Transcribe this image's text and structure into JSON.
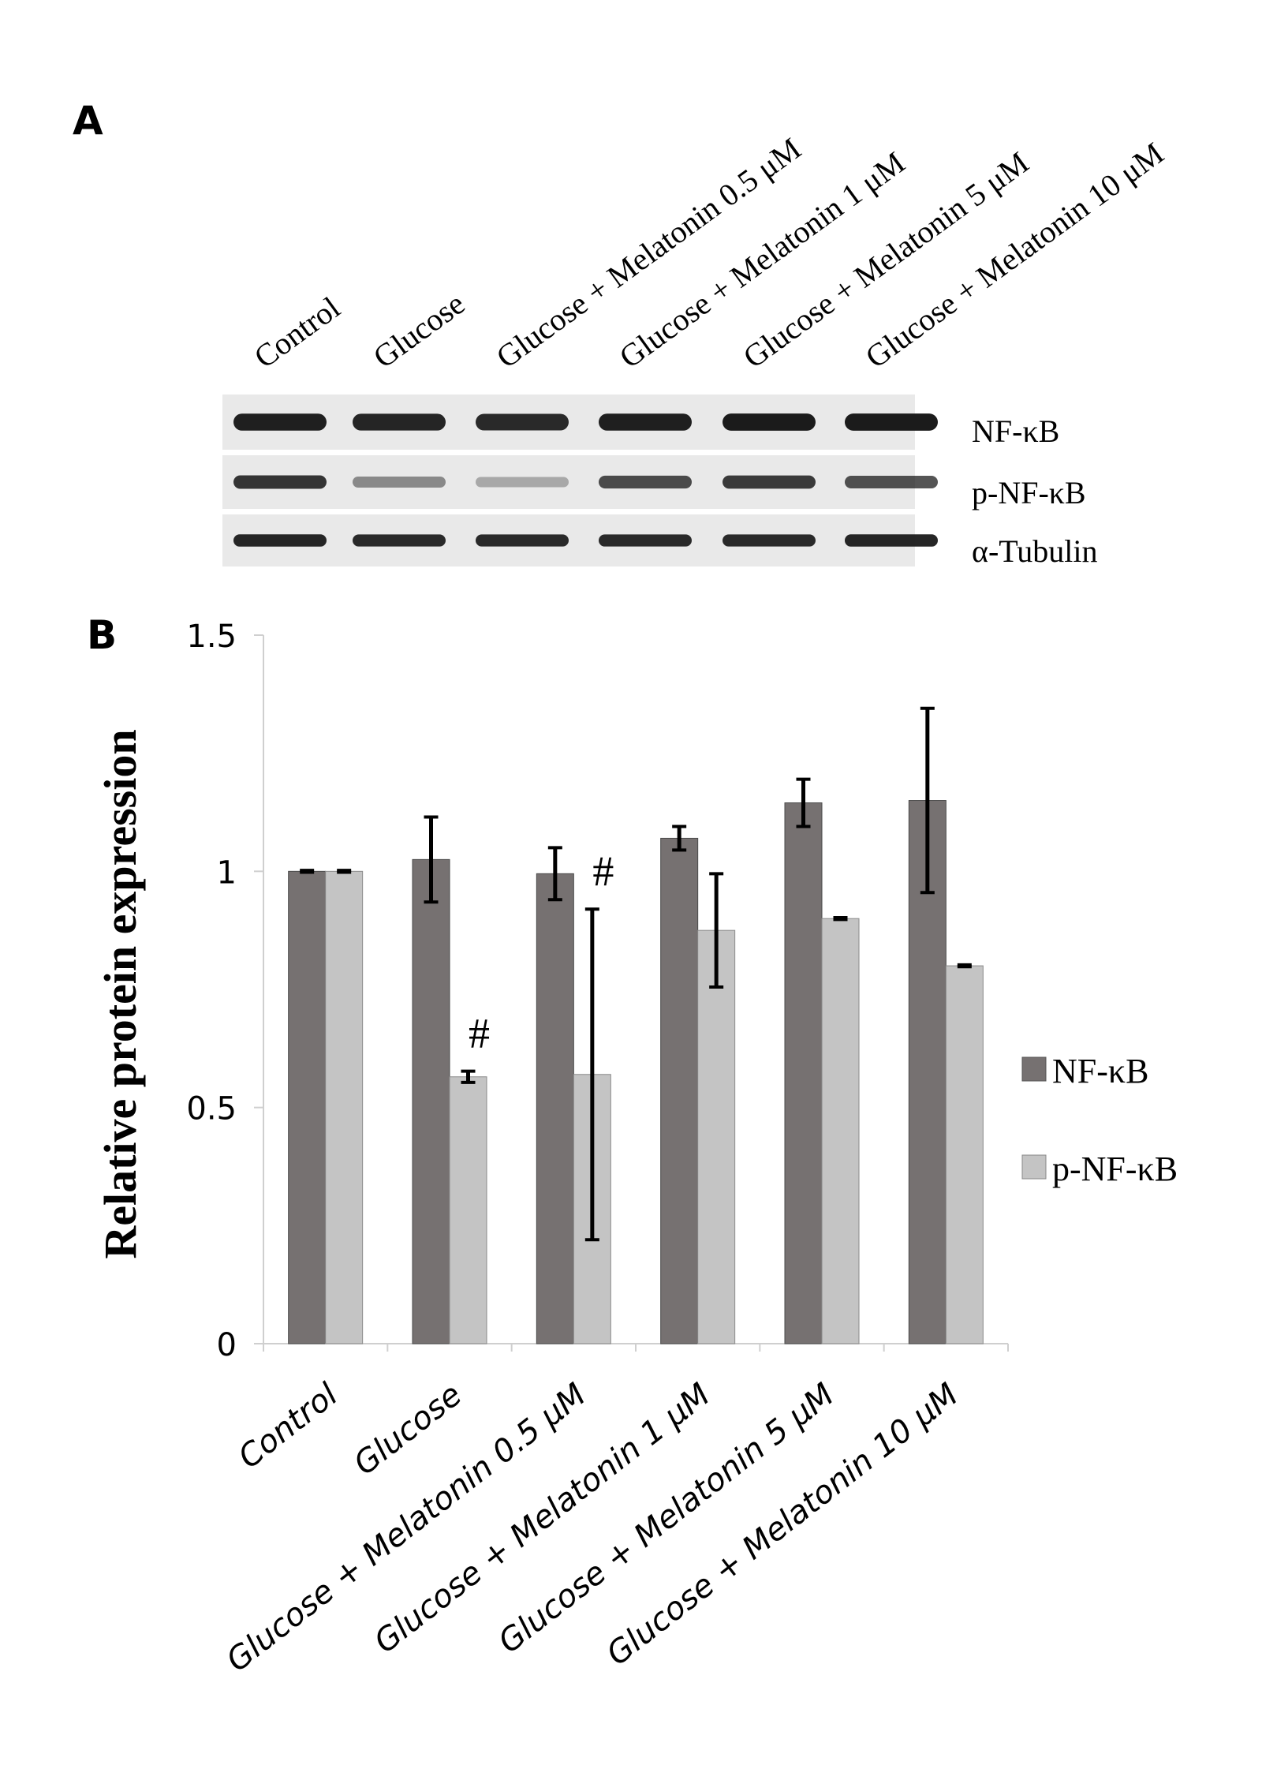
{
  "panel_a": {
    "label": "A",
    "lane_labels": [
      "Control",
      "Glucose",
      "Glucose + Melatonin 0.5 μM",
      "Glucose + Melatonin 1 μM",
      "Glucose + Melatonin 5 μM",
      "Glucose + Melatonin 10 μM"
    ],
    "blots": [
      {
        "name": "NF-κB",
        "band_intensity": [
          0.95,
          0.92,
          0.9,
          0.95,
          0.97,
          0.97
        ]
      },
      {
        "name": "p-NF-κB",
        "band_intensity": [
          0.85,
          0.45,
          0.3,
          0.75,
          0.82,
          0.72
        ]
      },
      {
        "name": "α-Tubulin",
        "band_intensity": [
          0.92,
          0.9,
          0.9,
          0.9,
          0.9,
          0.92
        ]
      }
    ]
  },
  "panel_b": {
    "label": "B"
  },
  "colors": {
    "nfkb": "#767171",
    "pnfkb": "#c4c4c4",
    "axis": "#cfcfcf",
    "error_bar": "#000000",
    "blot_background": "#e9e9e9",
    "band": "#141414"
  },
  "chart_data": {
    "type": "bar",
    "title": "",
    "xlabel": "",
    "ylabel": "Relative protein expression",
    "ylim": [
      0,
      1.5
    ],
    "yticks": [
      "0",
      "0.5",
      "1",
      "1.5"
    ],
    "ytick_values": [
      0,
      0.5,
      1,
      1.5
    ],
    "grid": false,
    "legend_position": "right",
    "categories": [
      "Control",
      "Glucose",
      "Glucose + Melatonin 0.5 µM",
      "Glucose + Melatonin 1 µM",
      "Glucose + Melatonin 5 µM",
      "Glucose + Melatonin 10 µM"
    ],
    "series": [
      {
        "name": "NF-κB",
        "values": [
          1.0,
          1.025,
          0.995,
          1.07,
          1.145,
          1.15
        ],
        "errors": [
          0.002,
          0.09,
          0.055,
          0.025,
          0.05,
          0.195
        ]
      },
      {
        "name": "p-NF-κB",
        "values": [
          1.0,
          0.565,
          0.57,
          0.875,
          0.9,
          0.8
        ],
        "errors": [
          0.002,
          0.012,
          0.35,
          0.12,
          0.002,
          0.002
        ]
      }
    ],
    "annotations": [
      {
        "text": "#",
        "category": 1,
        "series": 1
      },
      {
        "text": "#",
        "category": 2,
        "series": 1
      }
    ]
  }
}
